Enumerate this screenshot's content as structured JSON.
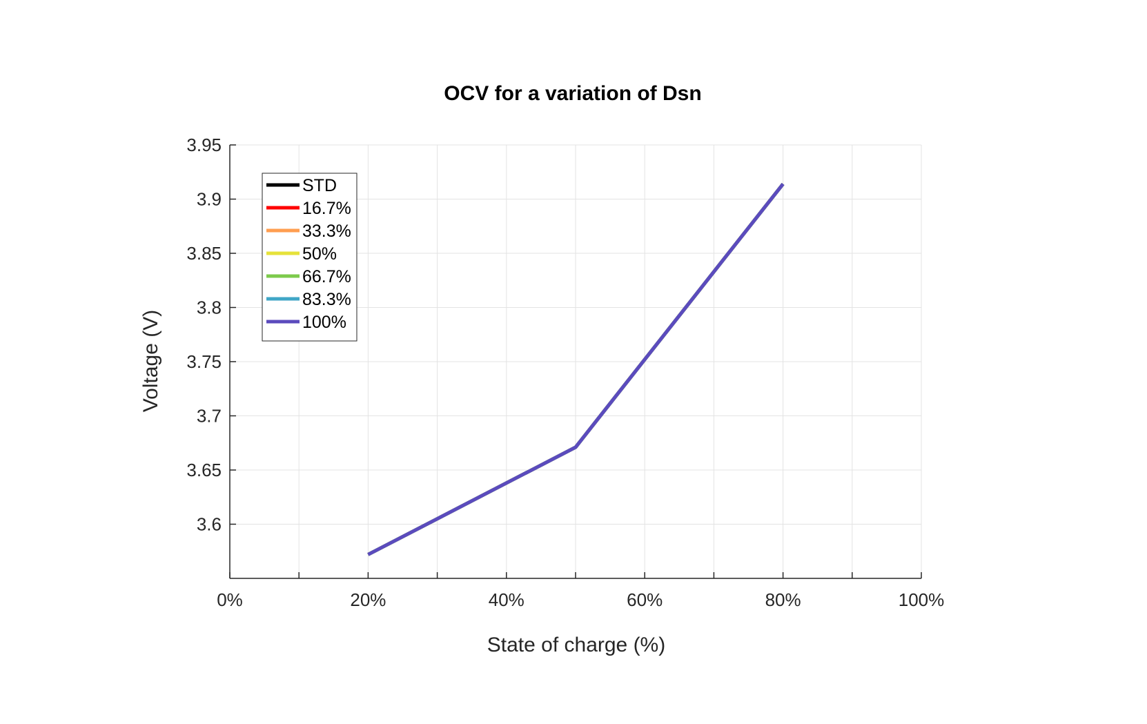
{
  "chart_data": {
    "type": "line",
    "title": "OCV for a variation of Dsn",
    "xlabel": "State of charge (%)",
    "ylabel": "Voltage (V)",
    "xlim": [
      0,
      100
    ],
    "ylim": [
      3.55,
      3.95
    ],
    "x_ticks": [
      0,
      20,
      40,
      60,
      80,
      100
    ],
    "x_tick_labels": [
      "0%",
      "20%",
      "40%",
      "60%",
      "80%",
      "100%"
    ],
    "x_minor_ticks": [
      10,
      30,
      50,
      70,
      90
    ],
    "y_ticks": [
      3.6,
      3.65,
      3.7,
      3.75,
      3.8,
      3.85,
      3.9,
      3.95
    ],
    "y_tick_labels": [
      "3.6",
      "3.65",
      "3.7",
      "3.75",
      "3.8",
      "3.85",
      "3.9",
      "3.95"
    ],
    "grid": true,
    "legend_position": "top-left",
    "x": [
      20,
      50,
      80
    ],
    "series": [
      {
        "name": "STD",
        "color": "#000000",
        "values": [
          3.572,
          3.671,
          3.914
        ]
      },
      {
        "name": "16.7%",
        "color": "#ff0000",
        "values": [
          3.572,
          3.671,
          3.914
        ]
      },
      {
        "name": "33.3%",
        "color": "#ff9e50",
        "values": [
          3.572,
          3.671,
          3.914
        ]
      },
      {
        "name": "50%",
        "color": "#e6e23a",
        "values": [
          3.572,
          3.671,
          3.914
        ]
      },
      {
        "name": "66.7%",
        "color": "#7cca4c",
        "values": [
          3.572,
          3.671,
          3.914
        ]
      },
      {
        "name": "83.3%",
        "color": "#40a6c6",
        "values": [
          3.572,
          3.671,
          3.914
        ]
      },
      {
        "name": "100%",
        "color": "#5b4bbd",
        "values": [
          3.572,
          3.671,
          3.914
        ]
      }
    ]
  }
}
